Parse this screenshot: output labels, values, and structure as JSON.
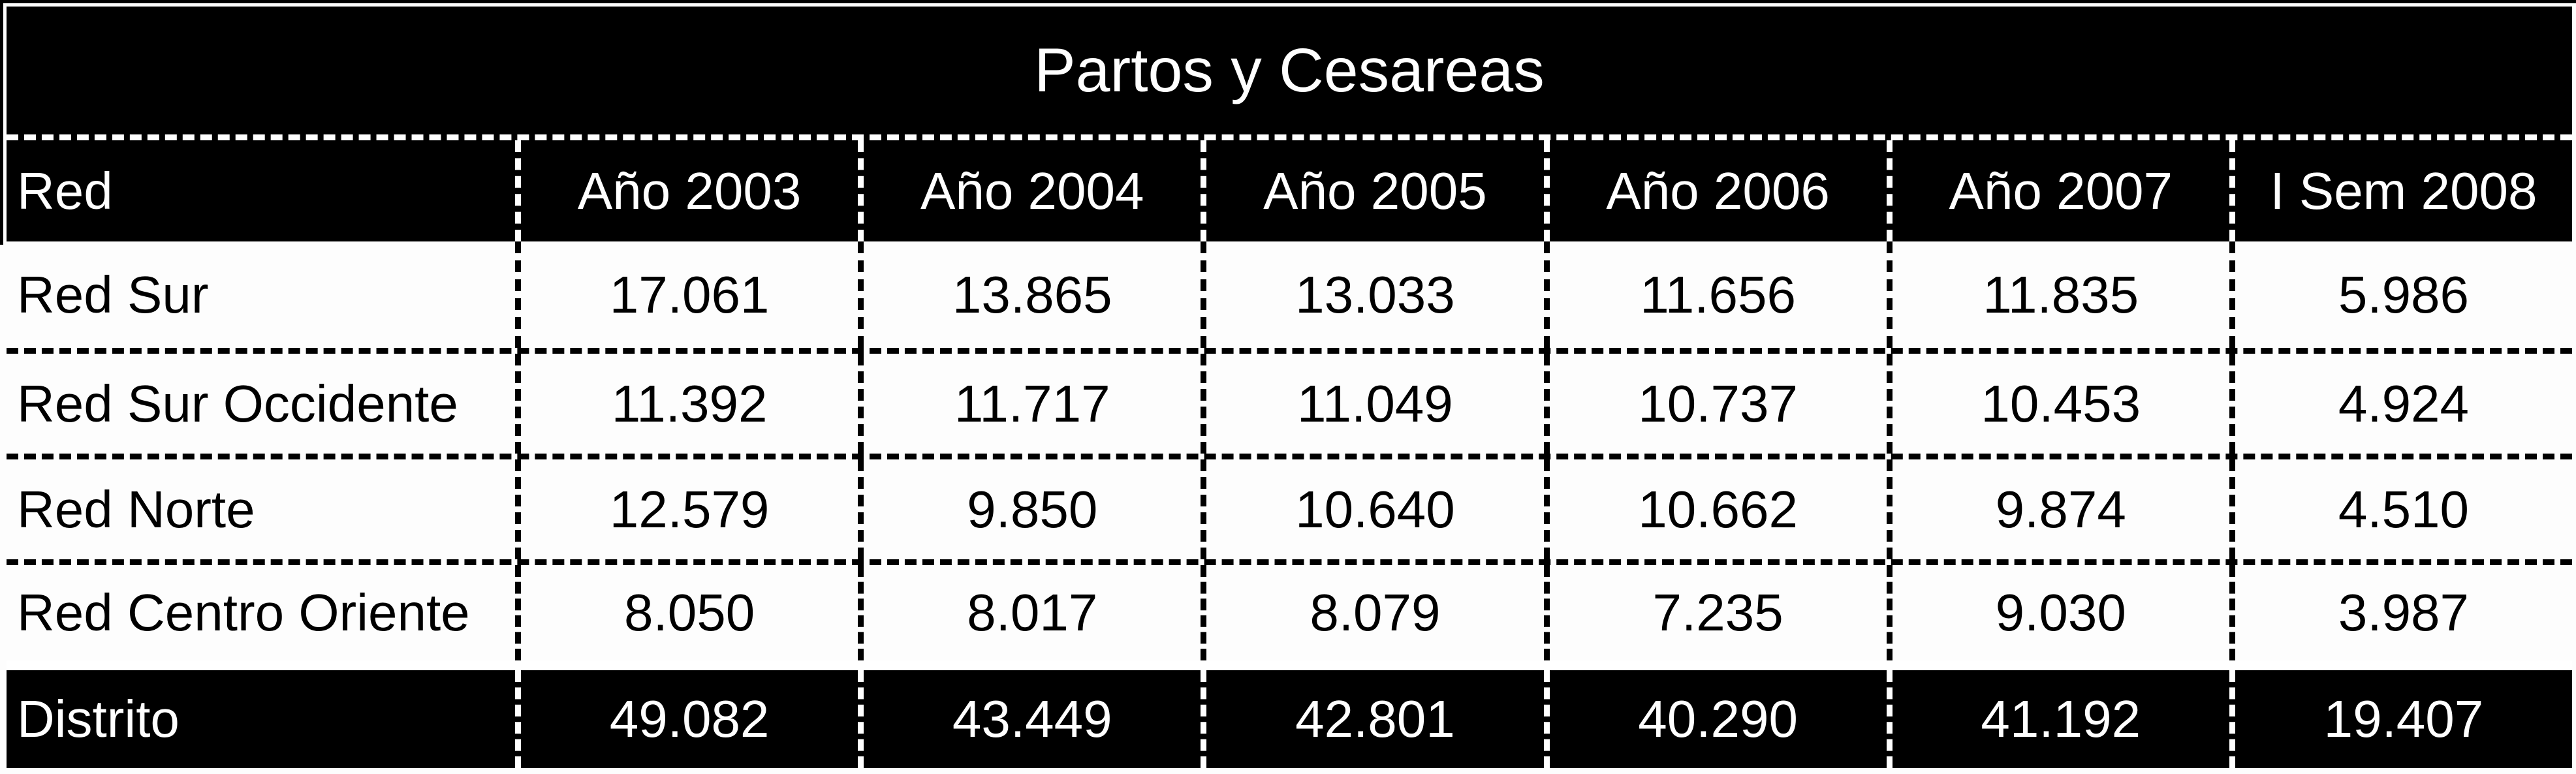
{
  "table": {
    "title": "Partos y Cesareas",
    "columns": [
      "Red",
      "Año 2003",
      "Año 2004",
      "Año 2005",
      "Año 2006",
      "Año 2007",
      "I Sem 2008"
    ],
    "rows": [
      {
        "label": "Red Sur",
        "values": [
          "17.061",
          "13.865",
          "13.033",
          "11.656",
          "11.835",
          "5.986"
        ]
      },
      {
        "label": "Red Sur Occidente",
        "values": [
          "11.392",
          "11.717",
          "11.049",
          "10.737",
          "10.453",
          "4.924"
        ]
      },
      {
        "label": "Red Norte",
        "values": [
          "12.579",
          "9.850",
          "10.640",
          "10.662",
          "9.874",
          "4.510"
        ]
      },
      {
        "label": "Red Centro Oriente",
        "values": [
          "8.050",
          "8.017",
          "8.079",
          "7.235",
          "9.030",
          "3.987"
        ]
      }
    ],
    "total_row": {
      "label": "Distrito",
      "values": [
        "49.082",
        "43.449",
        "42.801",
        "40.290",
        "41.192",
        "19.407"
      ]
    }
  },
  "colors": {
    "block_bg": "#000000",
    "block_text": "#ffffff",
    "row_bg": "#fdfdfd",
    "row_text": "#000000"
  }
}
